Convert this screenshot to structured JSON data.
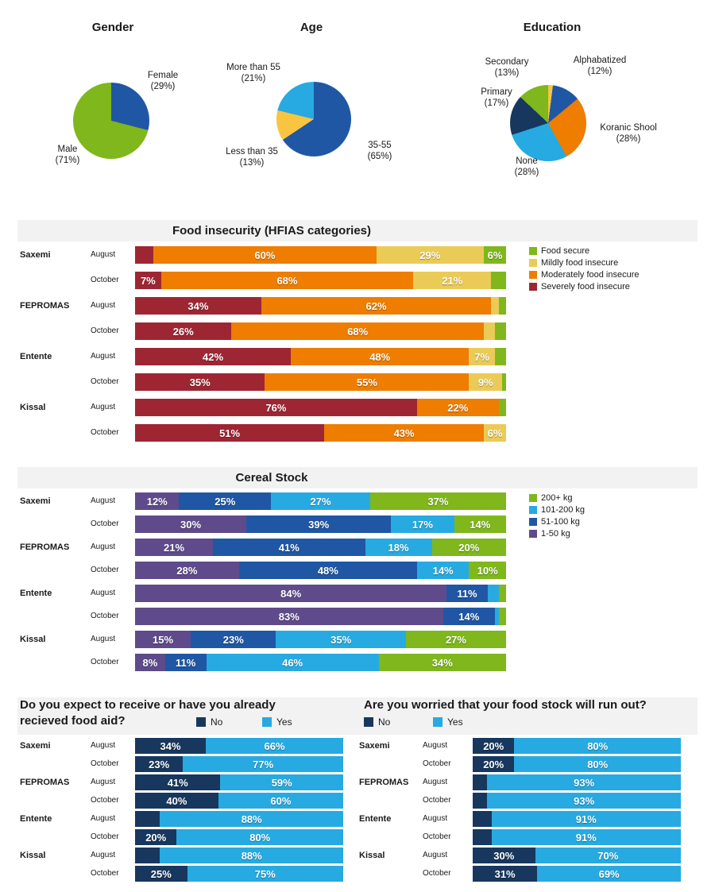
{
  "colors": {
    "green": "#7FB71C",
    "light_blue": "#27AAE1",
    "mid_blue": "#1F57A5",
    "navy": "#17375E",
    "purple": "#5F4B8B",
    "orange": "#EE7D00",
    "dark_red": "#9E2633",
    "gold": "#EBCB57",
    "yellow": "#F9C440",
    "band_bg": "#F2F2F2",
    "text": "#1A1A1A"
  },
  "chart_data": [
    {
      "id": "gender",
      "type": "pie",
      "title": "Gender",
      "slices": [
        {
          "label": "Female",
          "value": 29,
          "color": "mid_blue",
          "label_lines": [
            "Female",
            "(29%)"
          ]
        },
        {
          "label": "Male",
          "value": 71,
          "color": "green",
          "label_lines": [
            "Male",
            "(71%)"
          ]
        }
      ]
    },
    {
      "id": "age",
      "type": "pie",
      "title": "Age",
      "slices": [
        {
          "label": "35-55",
          "value": 65,
          "color": "mid_blue",
          "label_lines": [
            "35-55",
            "(65%)"
          ]
        },
        {
          "label": "Less than 35",
          "value": 13,
          "color": "yellow",
          "label_lines": [
            "Less than 35",
            "(13%)"
          ]
        },
        {
          "label": "More than 55",
          "value": 21,
          "color": "light_blue",
          "label_lines": [
            "More than 55",
            "(21%)"
          ]
        }
      ]
    },
    {
      "id": "education",
      "type": "pie",
      "title": "Education",
      "slices": [
        {
          "label": "",
          "value": 2,
          "color": "yellow"
        },
        {
          "label": "Alphabatized",
          "value": 12,
          "color": "mid_blue",
          "label_lines": [
            "Alphabatized",
            "(12%)"
          ]
        },
        {
          "label": "Koranic Shool",
          "value": 28,
          "color": "orange",
          "label_lines": [
            "Koranic Shool",
            "(28%)"
          ]
        },
        {
          "label": "None",
          "value": 28,
          "color": "light_blue",
          "label_lines": [
            "None",
            "(28%)"
          ]
        },
        {
          "label": "Primary",
          "value": 17,
          "color": "navy",
          "label_lines": [
            "Primary",
            "(17%)"
          ]
        },
        {
          "label": "Secondary",
          "value": 13,
          "color": "green",
          "label_lines": [
            "Secondary",
            "(13%)"
          ]
        }
      ]
    },
    {
      "id": "hfias",
      "type": "bar",
      "stacked": true,
      "orientation": "horizontal",
      "title": "Food insecurity (HFIAS categories)",
      "series_names": [
        "Severely food insecure",
        "Moderately food insecure",
        "Mildly food insecure",
        "Food secure"
      ],
      "series_colors": [
        "dark_red",
        "orange",
        "gold",
        "green"
      ],
      "legend": [
        {
          "label": "Food secure",
          "color": "green"
        },
        {
          "label": "Mildly food insecure",
          "color": "gold"
        },
        {
          "label": "Moderately food insecure",
          "color": "orange"
        },
        {
          "label": "Severely food insecure",
          "color": "dark_red"
        }
      ],
      "rows": [
        {
          "group": "Saxemi",
          "month": "August",
          "values": [
            5,
            60,
            29,
            6
          ],
          "labels": [
            "",
            "60%",
            "29%",
            "6%"
          ]
        },
        {
          "group": "",
          "month": "October",
          "values": [
            7,
            68,
            21,
            4
          ],
          "labels": [
            "7%",
            "68%",
            "21%",
            ""
          ]
        },
        {
          "group": "FEPROMAS",
          "month": "August",
          "values": [
            34,
            62,
            2,
            2
          ],
          "labels": [
            "34%",
            "62%",
            "",
            ""
          ]
        },
        {
          "group": "",
          "month": "October",
          "values": [
            26,
            68,
            3,
            3
          ],
          "labels": [
            "26%",
            "68%",
            "",
            ""
          ]
        },
        {
          "group": "Entente",
          "month": "August",
          "values": [
            42,
            48,
            7,
            3
          ],
          "labels": [
            "42%",
            "48%",
            "7%",
            ""
          ]
        },
        {
          "group": "",
          "month": "October",
          "values": [
            35,
            55,
            9,
            1
          ],
          "labels": [
            "35%",
            "55%",
            "9%",
            ""
          ]
        },
        {
          "group": "Kissal",
          "month": "August",
          "values": [
            76,
            22,
            0,
            2
          ],
          "labels": [
            "76%",
            "22%",
            "",
            ""
          ]
        },
        {
          "group": "",
          "month": "October",
          "values": [
            51,
            43,
            6,
            0
          ],
          "labels": [
            "51%",
            "43%",
            "6%",
            ""
          ]
        }
      ]
    },
    {
      "id": "cereal",
      "type": "bar",
      "stacked": true,
      "orientation": "horizontal",
      "title": "Cereal Stock",
      "series_names": [
        "1-50 kg",
        "51-100 kg",
        "101-200 kg",
        "200+ kg"
      ],
      "series_colors": [
        "purple",
        "mid_blue",
        "light_blue",
        "green"
      ],
      "legend": [
        {
          "label": "200+ kg",
          "color": "green"
        },
        {
          "label": "101-200 kg",
          "color": "light_blue"
        },
        {
          "label": "51-100 kg",
          "color": "mid_blue"
        },
        {
          "label": "1-50 kg",
          "color": "purple"
        }
      ],
      "rows": [
        {
          "group": "Saxemi",
          "month": "August",
          "values": [
            12,
            25,
            27,
            37
          ],
          "labels": [
            "12%",
            "25%",
            "27%",
            "37%"
          ]
        },
        {
          "group": "",
          "month": "October",
          "values": [
            30,
            39,
            17,
            14
          ],
          "labels": [
            "30%",
            "39%",
            "17%",
            "14%"
          ]
        },
        {
          "group": "FEPROMAS",
          "month": "August",
          "values": [
            21,
            41,
            18,
            20
          ],
          "labels": [
            "21%",
            "41%",
            "18%",
            "20%"
          ]
        },
        {
          "group": "",
          "month": "October",
          "values": [
            28,
            48,
            14,
            10
          ],
          "labels": [
            "28%",
            "48%",
            "14%",
            "10%"
          ]
        },
        {
          "group": "Entente",
          "month": "August",
          "values": [
            84,
            11,
            3,
            2
          ],
          "labels": [
            "84%",
            "11%",
            "",
            ""
          ]
        },
        {
          "group": "",
          "month": "October",
          "values": [
            83,
            14,
            1,
            2
          ],
          "labels": [
            "83%",
            "14%",
            "",
            ""
          ]
        },
        {
          "group": "Kissal",
          "month": "August",
          "values": [
            15,
            23,
            35,
            27
          ],
          "labels": [
            "15%",
            "23%",
            "35%",
            "27%"
          ]
        },
        {
          "group": "",
          "month": "October",
          "values": [
            8,
            11,
            46,
            34
          ],
          "labels": [
            "8%",
            "11%",
            "46%",
            "34%"
          ]
        }
      ]
    },
    {
      "id": "food_aid",
      "type": "bar",
      "stacked": true,
      "orientation": "horizontal",
      "title_lines": [
        "Do you expect to receive or have you already",
        "recieved food aid?"
      ],
      "series_names": [
        "No",
        "Yes"
      ],
      "series_colors": [
        "navy",
        "light_blue"
      ],
      "legend": [
        {
          "label": "No",
          "color": "navy"
        },
        {
          "label": "Yes",
          "color": "light_blue"
        }
      ],
      "rows": [
        {
          "group": "Saxemi",
          "month": "August",
          "values": [
            34,
            66
          ],
          "labels": [
            "34%",
            "66%"
          ]
        },
        {
          "group": "",
          "month": "October",
          "values": [
            23,
            77
          ],
          "labels": [
            "23%",
            "77%"
          ]
        },
        {
          "group": "FEPROMAS",
          "month": "August",
          "values": [
            41,
            59
          ],
          "labels": [
            "41%",
            "59%"
          ]
        },
        {
          "group": "",
          "month": "October",
          "values": [
            40,
            60
          ],
          "labels": [
            "40%",
            "60%"
          ]
        },
        {
          "group": "Entente",
          "month": "August",
          "values": [
            12,
            88
          ],
          "labels": [
            "",
            "88%"
          ]
        },
        {
          "group": "",
          "month": "October",
          "values": [
            20,
            80
          ],
          "labels": [
            "20%",
            "80%"
          ]
        },
        {
          "group": "Kissal",
          "month": "August",
          "values": [
            12,
            88
          ],
          "labels": [
            "",
            "88%"
          ]
        },
        {
          "group": "",
          "month": "October",
          "values": [
            25,
            75
          ],
          "labels": [
            "25%",
            "75%"
          ]
        }
      ]
    },
    {
      "id": "worried",
      "type": "bar",
      "stacked": true,
      "orientation": "horizontal",
      "title": "Are you worried that your food stock will run out?",
      "series_names": [
        "No",
        "Yes"
      ],
      "series_colors": [
        "navy",
        "light_blue"
      ],
      "legend": [
        {
          "label": "No",
          "color": "navy"
        },
        {
          "label": "Yes",
          "color": "light_blue"
        }
      ],
      "rows": [
        {
          "group": "Saxemi",
          "month": "August",
          "values": [
            20,
            80
          ],
          "labels": [
            "20%",
            "80%"
          ]
        },
        {
          "group": "",
          "month": "October",
          "values": [
            20,
            80
          ],
          "labels": [
            "20%",
            "80%"
          ]
        },
        {
          "group": "FEPROMAS",
          "month": "August",
          "values": [
            7,
            93
          ],
          "labels": [
            "",
            "93%"
          ]
        },
        {
          "group": "",
          "month": "October",
          "values": [
            7,
            93
          ],
          "labels": [
            "",
            "93%"
          ]
        },
        {
          "group": "Entente",
          "month": "August",
          "values": [
            9,
            91
          ],
          "labels": [
            "",
            "91%"
          ]
        },
        {
          "group": "",
          "month": "October",
          "values": [
            9,
            91
          ],
          "labels": [
            "",
            "91%"
          ]
        },
        {
          "group": "Kissal",
          "month": "August",
          "values": [
            30,
            70
          ],
          "labels": [
            "30%",
            "70%"
          ]
        },
        {
          "group": "",
          "month": "October",
          "values": [
            31,
            69
          ],
          "labels": [
            "31%",
            "69%"
          ]
        }
      ]
    }
  ]
}
